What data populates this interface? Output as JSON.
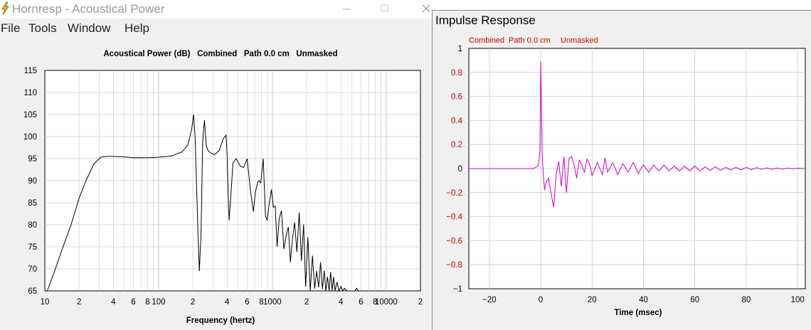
{
  "left_window": {
    "title": "Hornresp - Acoustical Power",
    "menu": [
      "File",
      "Tools",
      "Window",
      "Help"
    ]
  },
  "right_window": {
    "title": "Impulse Response"
  },
  "colors": {
    "power_trace": "#000000",
    "impulse_trace": "#d000d0",
    "red_labels": "#cc0000",
    "grid": "#c8c8c8"
  },
  "chart_data": [
    {
      "type": "line",
      "title": "Acoustical Power (dB)   Combined   Path 0.0 cm   Unmasked",
      "xlabel": "Frequency (hertz)",
      "ylabel": "",
      "x_scale": "log",
      "xlim": [
        10,
        20000
      ],
      "ylim": [
        65,
        115
      ],
      "y_ticks": [
        "115",
        "110",
        "105",
        "100",
        "95",
        "90",
        "85",
        "80",
        "75",
        "70",
        "65"
      ],
      "x_tick_labels": [
        {
          "f": 10,
          "label": "10"
        },
        {
          "f": 20,
          "label": "2"
        },
        {
          "f": 40,
          "label": "4"
        },
        {
          "f": 60,
          "label": "6"
        },
        {
          "f": 80,
          "label": "8"
        },
        {
          "f": 100,
          "label": "100"
        },
        {
          "f": 200,
          "label": "2"
        },
        {
          "f": 400,
          "label": "4"
        },
        {
          "f": 600,
          "label": "6"
        },
        {
          "f": 800,
          "label": "8"
        },
        {
          "f": 1000,
          "label": "1000"
        },
        {
          "f": 2000,
          "label": "2"
        },
        {
          "f": 4000,
          "label": "4"
        },
        {
          "f": 6000,
          "label": "6"
        },
        {
          "f": 8000,
          "label": "8"
        },
        {
          "f": 10000,
          "label": "10000"
        },
        {
          "f": 20000,
          "label": "2"
        }
      ],
      "series": [
        {
          "x": [
            10.5,
            12,
            14,
            17,
            20,
            23,
            27,
            31,
            35,
            40,
            50,
            60,
            80,
            100,
            130,
            160,
            180,
            195,
            203,
            209,
            215,
            222,
            228,
            236,
            244,
            253,
            262,
            272,
            290,
            310,
            340,
            370,
            392,
            400,
            408,
            416,
            430,
            450,
            480,
            520,
            560,
            600,
            640,
            680,
            710,
            740,
            760,
            790,
            830,
            870,
            900,
            940,
            980,
            1020,
            1060,
            1100,
            1150,
            1200,
            1260,
            1320,
            1380,
            1440,
            1500,
            1570,
            1640,
            1720,
            1800,
            1880,
            1960,
            2050,
            2150,
            2250,
            2350,
            2450,
            2550,
            2650,
            2750,
            2850,
            2950,
            3050,
            3150,
            3250,
            3350,
            3450,
            3550,
            3700,
            3850,
            4000,
            4150,
            4300,
            4500,
            4700,
            5000,
            5300,
            5500,
            5700,
            6000
          ],
          "y": [
            65,
            69,
            74,
            80,
            86,
            90,
            93.8,
            95.3,
            95.5,
            95.5,
            95.4,
            95.2,
            95.2,
            95.3,
            95.6,
            96.5,
            98,
            101.5,
            105,
            100,
            90,
            78,
            69.5,
            78,
            99,
            103.7,
            98,
            96.8,
            96.2,
            95.9,
            96.8,
            99.5,
            100.3,
            96,
            88,
            81,
            86,
            94,
            95,
            93.3,
            93,
            95,
            88,
            83,
            87.5,
            89.5,
            90,
            89.5,
            95,
            82,
            81,
            85,
            88,
            84,
            84.2,
            75,
            81.5,
            83.2,
            74.5,
            77.5,
            79.5,
            71.5,
            76.8,
            80.5,
            73.8,
            82.8,
            71.8,
            80.1,
            66,
            77.2,
            65,
            73,
            65.5,
            69.5,
            65.8,
            71.5,
            65.4,
            69.6,
            65,
            68.2,
            65,
            69.3,
            65.1,
            68.2,
            65,
            67,
            65,
            66,
            65,
            65.6,
            65,
            65,
            65,
            65,
            65.6,
            65,
            65
          ]
        }
      ]
    },
    {
      "type": "line",
      "title": "",
      "subtitle": [
        "Combined",
        "Path 0.0 cm",
        "Unmasked"
      ],
      "xlabel": "Time (msec)",
      "ylabel": "",
      "xlim": [
        -28,
        103
      ],
      "ylim": [
        -1,
        1
      ],
      "y_ticks": [
        "1",
        "0.8",
        "0.6",
        "0.4",
        "0.2",
        "0",
        "−0.2",
        "−0.4",
        "−0.6",
        "−0.8",
        "−1"
      ],
      "x_ticks": [
        {
          "v": -20,
          "label": "−20"
        },
        {
          "v": 0,
          "label": "0"
        },
        {
          "v": 20,
          "label": "20"
        },
        {
          "v": 40,
          "label": "40"
        },
        {
          "v": 60,
          "label": "60"
        },
        {
          "v": 80,
          "label": "80"
        },
        {
          "v": 100,
          "label": "100"
        }
      ],
      "series": [
        {
          "x": [
            -28,
            -20,
            -10,
            -3,
            -1,
            -0.3,
            0,
            0.3,
            0.6,
            1,
            1.5,
            2,
            3,
            4,
            5,
            6,
            7,
            8,
            9,
            10,
            11,
            12,
            13,
            14,
            15,
            16,
            17,
            18,
            19,
            20,
            22,
            24,
            25,
            26,
            28,
            30,
            32,
            34,
            36,
            38,
            40,
            42,
            44,
            46,
            48,
            50,
            52,
            54,
            56,
            58,
            60,
            62,
            64,
            66,
            68,
            70,
            72,
            74,
            76,
            78,
            80,
            82,
            84,
            86,
            88,
            90,
            92,
            94,
            96,
            98,
            100,
            103
          ],
          "y": [
            0,
            0,
            0,
            0,
            0.02,
            0.15,
            0.89,
            0.5,
            0.1,
            -0.05,
            -0.18,
            -0.12,
            -0.08,
            -0.2,
            -0.32,
            -0.05,
            0.06,
            -0.15,
            0.1,
            -0.2,
            0.08,
            0.1,
            0.03,
            -0.08,
            0.07,
            0.03,
            -0.03,
            0.08,
            0.04,
            -0.06,
            0.05,
            -0.05,
            0.09,
            -0.03,
            0.05,
            -0.05,
            0.04,
            -0.03,
            0.05,
            -0.04,
            0.03,
            -0.03,
            0.03,
            -0.02,
            0.03,
            -0.02,
            0.02,
            -0.02,
            0.02,
            -0.02,
            0.02,
            -0.02,
            0.015,
            -0.015,
            0.015,
            -0.015,
            0.01,
            -0.01,
            0.01,
            -0.01,
            0.01,
            -0.008,
            0.008,
            -0.006,
            0.006,
            -0.005,
            0.005,
            -0.004,
            0.004,
            -0.003,
            0.003,
            0
          ]
        }
      ]
    }
  ]
}
